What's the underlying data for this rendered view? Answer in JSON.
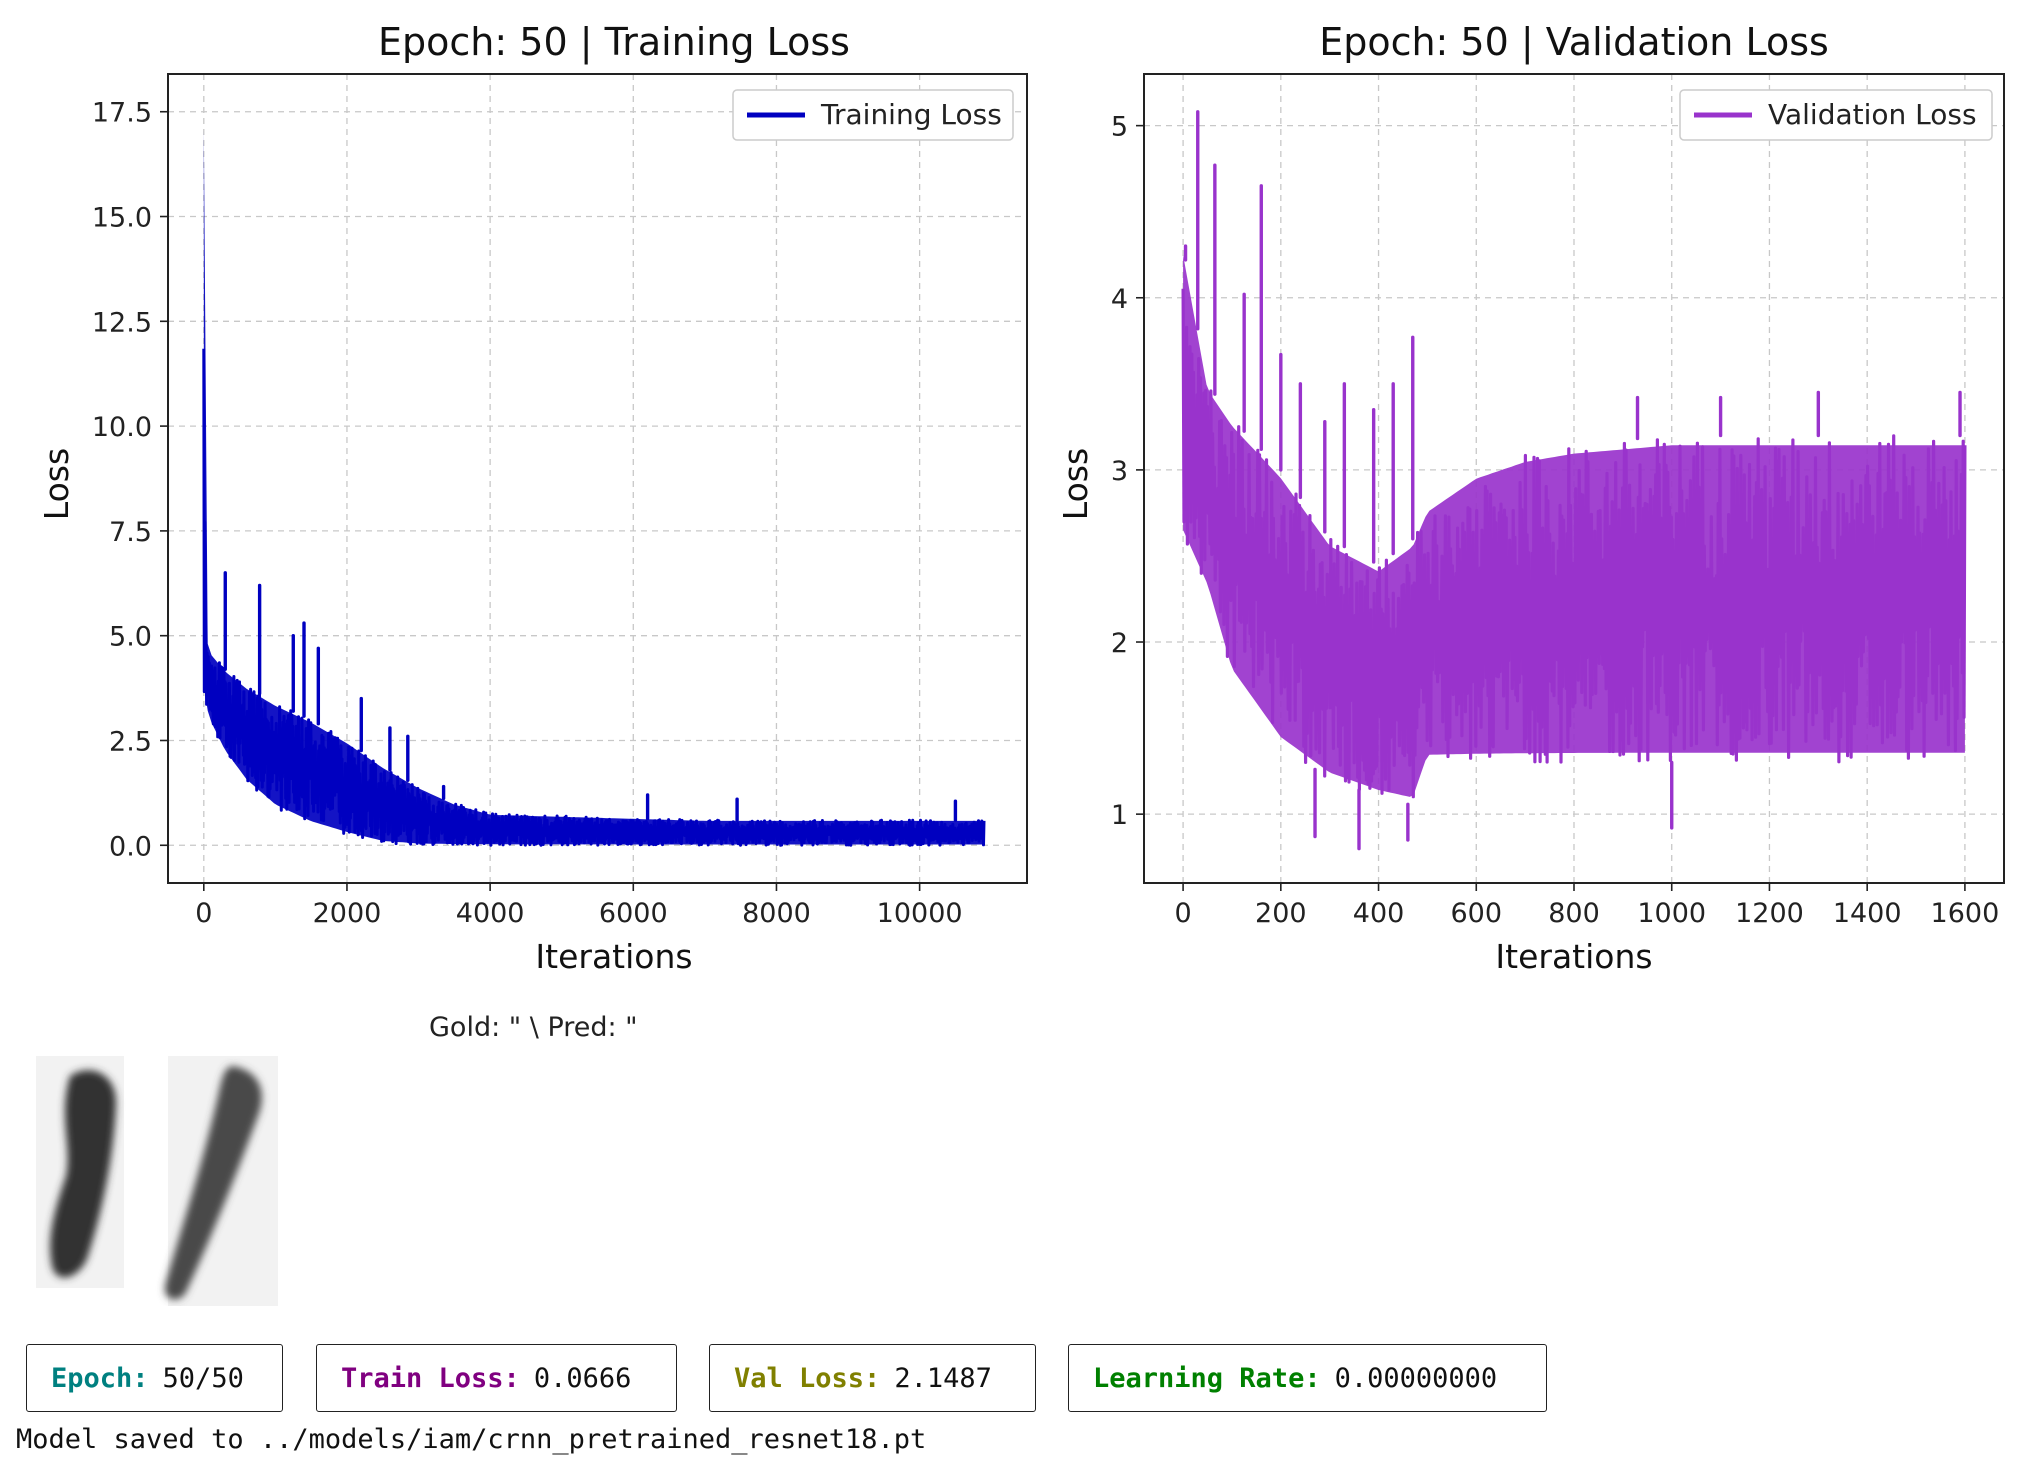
{
  "chart_data": [
    {
      "type": "line",
      "title": "Epoch: 50 | Training Loss",
      "xlabel": "Iterations",
      "ylabel": "Loss",
      "xlim": [
        -500,
        11500
      ],
      "ylim": [
        -0.9,
        18.4
      ],
      "xticks": [
        0,
        2000,
        4000,
        6000,
        8000,
        10000
      ],
      "yticks": [
        0.0,
        2.5,
        5.0,
        7.5,
        10.0,
        12.5,
        15.0,
        17.5
      ],
      "ytick_labels": [
        "0.0",
        "2.5",
        "5.0",
        "7.5",
        "10.0",
        "12.5",
        "15.0",
        "17.5"
      ],
      "grid": true,
      "legend_position": "top-right",
      "series": [
        {
          "name": "Training Loss",
          "color": "#0000c0",
          "x_max": 10900,
          "envelope": {
            "x": [
              0,
              30,
              100,
              300,
              600,
              1000,
              1500,
              2000,
              2500,
              3000,
              3500,
              4000,
              5000,
              6000,
              7000,
              8000,
              9000,
              10000,
              10900
            ],
            "upper": [
              17.5,
              5.0,
              4.6,
              4.2,
              3.8,
              3.4,
              3.0,
              2.5,
              1.9,
              1.4,
              1.0,
              0.75,
              0.7,
              0.65,
              0.6,
              0.6,
              0.6,
              0.6,
              0.6
            ],
            "lower": [
              3.4,
              3.3,
              2.9,
              2.2,
              1.5,
              0.9,
              0.5,
              0.25,
              0.05,
              0.0,
              0.0,
              0.0,
              0.0,
              0.0,
              0.0,
              0.0,
              0.0,
              0.0,
              0.0
            ]
          },
          "spikes": [
            {
              "x": 300,
              "y": 6.5
            },
            {
              "x": 780,
              "y": 6.2
            },
            {
              "x": 1250,
              "y": 5.0
            },
            {
              "x": 1400,
              "y": 5.3
            },
            {
              "x": 1600,
              "y": 4.7
            },
            {
              "x": 2200,
              "y": 3.5
            },
            {
              "x": 2600,
              "y": 2.8
            },
            {
              "x": 2850,
              "y": 2.6
            },
            {
              "x": 3350,
              "y": 1.4
            },
            {
              "x": 6200,
              "y": 1.2
            },
            {
              "x": 7450,
              "y": 1.1
            },
            {
              "x": 10500,
              "y": 1.05
            }
          ]
        }
      ]
    },
    {
      "type": "line",
      "title": "Epoch: 50 | Validation Loss",
      "xlabel": "Iterations",
      "ylabel": "Loss",
      "xlim": [
        -80,
        1680
      ],
      "ylim": [
        0.6,
        5.3
      ],
      "xticks": [
        0,
        200,
        400,
        600,
        800,
        1000,
        1200,
        1400,
        1600
      ],
      "yticks": [
        1,
        2,
        3,
        4,
        5
      ],
      "ytick_labels": [
        "1",
        "2",
        "3",
        "4",
        "5"
      ],
      "grid": true,
      "legend_position": "top-right",
      "series": [
        {
          "name": "Validation Loss",
          "color": "#9933cc",
          "x_max": 1600,
          "envelope": {
            "x": [
              0,
              50,
              100,
              200,
              300,
              400,
              470,
              500,
              600,
              700,
              800,
              1000,
              1200,
              1400,
              1600
            ],
            "upper": [
              4.3,
              3.5,
              3.3,
              3.0,
              2.6,
              2.45,
              2.6,
              2.8,
              3.0,
              3.1,
              3.15,
              3.2,
              3.2,
              3.2,
              3.2
            ],
            "lower": [
              2.6,
              2.3,
              1.8,
              1.4,
              1.2,
              1.1,
              1.05,
              1.3,
              1.3,
              1.3,
              1.3,
              1.3,
              1.3,
              1.3,
              1.3
            ]
          },
          "spikes": [
            {
              "x": 5,
              "y": 4.3
            },
            {
              "x": 30,
              "y": 5.08
            },
            {
              "x": 65,
              "y": 4.77
            },
            {
              "x": 160,
              "y": 4.65
            },
            {
              "x": 125,
              "y": 4.02
            },
            {
              "x": 200,
              "y": 3.67
            },
            {
              "x": 330,
              "y": 3.5
            },
            {
              "x": 470,
              "y": 3.77
            },
            {
              "x": 430,
              "y": 3.5
            },
            {
              "x": 390,
              "y": 3.35
            },
            {
              "x": 240,
              "y": 3.5
            },
            {
              "x": 290,
              "y": 3.28
            },
            {
              "x": 460,
              "y": 0.85
            },
            {
              "x": 360,
              "y": 0.8
            },
            {
              "x": 270,
              "y": 0.87
            },
            {
              "x": 1000,
              "y": 0.92
            },
            {
              "x": 1300,
              "y": 3.45
            },
            {
              "x": 1590,
              "y": 3.45
            },
            {
              "x": 1100,
              "y": 3.42
            },
            {
              "x": 930,
              "y": 3.42
            }
          ]
        }
      ]
    }
  ],
  "sample": {
    "caption": "Gold: \" \\ Pred: \""
  },
  "stats": [
    {
      "key": "Epoch:",
      "value": "50/50",
      "color": "#008080"
    },
    {
      "key": "Train Loss:",
      "value": "0.0666",
      "color": "#800080"
    },
    {
      "key": "Val Loss:",
      "value": "2.1487",
      "color": "#808000"
    },
    {
      "key": "Learning Rate:",
      "value": "0.00000000",
      "color": "#008000"
    }
  ],
  "saved_message": "Model saved to ../models/iam/crnn_pretrained_resnet18.pt"
}
